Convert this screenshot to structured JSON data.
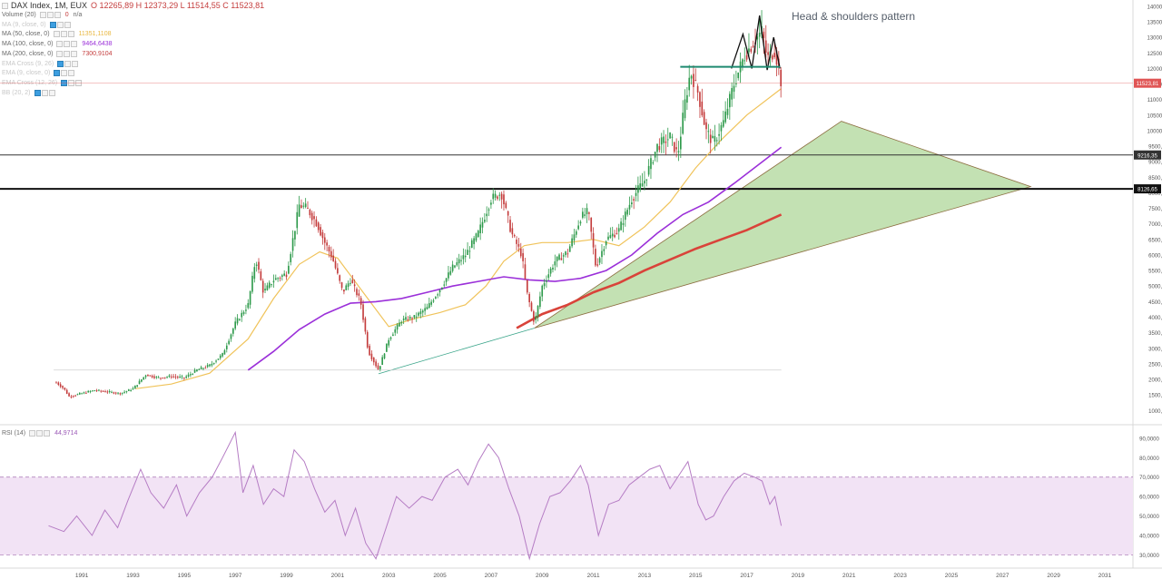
{
  "header": {
    "symbol": "DAX Index, 1M, EUX",
    "open": "O 12265,89",
    "high": "H 12373,29",
    "low": "L 11514,55",
    "close": "C 11523,81"
  },
  "indicators": [
    {
      "label": "Volume (20)",
      "value": "0",
      "extra": "n/a",
      "color": "#c43c3c",
      "faded": false
    },
    {
      "label": "MA (9, close, 0)",
      "value": "",
      "color": "#c8c8c8",
      "faded": true
    },
    {
      "label": "MA (50, close, 0)",
      "value": "11351,1108",
      "color": "#e9b740",
      "faded": false
    },
    {
      "label": "MA (100, close, 0)",
      "value": "9464,6438",
      "color": "#9b30d9",
      "faded": false
    },
    {
      "label": "MA (200, close, 0)",
      "value": "7300,9104",
      "color": "#c43c3c",
      "faded": false
    },
    {
      "label": "EMA Cross (9, 26)",
      "value": "",
      "color": "#c8c8c8",
      "faded": true
    },
    {
      "label": "EMA (9, close, 0)",
      "value": "",
      "color": "#c8c8c8",
      "faded": true
    },
    {
      "label": "EMA Cross (12, 26)",
      "value": "",
      "color": "#c8c8c8",
      "faded": true
    },
    {
      "label": "BB (20, 2)",
      "value": "",
      "color": "#c8c8c8",
      "faded": true
    }
  ],
  "rsi": {
    "label": "RSI (14)",
    "value": "44,9714",
    "color": "#9b59b6"
  },
  "annotation": "Head & shoulders pattern",
  "colors": {
    "up": "#2e9a4b",
    "down": "#c43c3c",
    "ma50": "#f0c35a",
    "ma100": "#9b30d9",
    "ma200": "#d9433a",
    "triangle_fill": "#b8dca6",
    "rsi": "#b57cc4",
    "rsi_band": "#f2e3f5"
  },
  "chart_data": {
    "type": "line",
    "title": "DAX Index, 1M, EUX",
    "price_axis": {
      "scale": "linear",
      "ylim": [
        600,
        14200
      ],
      "ticks": [
        "1000,00",
        "1500,00",
        "2000,00",
        "2500,00",
        "3000,00",
        "3500,00",
        "4000,00",
        "4500,00",
        "5000,00",
        "5500,00",
        "6000,00",
        "6500,00",
        "7000,00",
        "7500,00",
        "8000,00",
        "8500,00",
        "9000,00",
        "9500,00",
        "10000,00",
        "10500,00",
        "11000,00",
        "11500,00",
        "12000,00",
        "12500,00",
        "13000,00",
        "13500,00",
        "14000,00"
      ],
      "badges": [
        {
          "label": "11523,81",
          "value": 11523.81,
          "color": "#e05555"
        },
        {
          "label": "9216,35",
          "value": 9216.35,
          "color": "#333333"
        },
        {
          "label": "8126,65",
          "value": 8126.65,
          "color": "#111111"
        }
      ]
    },
    "x_axis": {
      "xlim": [
        1988.3,
        2032.6
      ],
      "ticks": [
        "1991",
        "1993",
        "1995",
        "1997",
        "1999",
        "2001",
        "2003",
        "2005",
        "2007",
        "2009",
        "2011",
        "2013",
        "2015",
        "2017",
        "2019",
        "2021",
        "2023",
        "2025",
        "2027",
        "2029",
        "2031"
      ]
    },
    "rsi_axis": {
      "ylim": [
        26,
        96
      ],
      "ticks": [
        "30,0000",
        "40,0000",
        "50,0000",
        "60,0000",
        "70,0000",
        "80,0000",
        "90,0000"
      ],
      "bands": [
        30,
        70
      ]
    },
    "price_path": [
      [
        1990.5,
        1900
      ],
      [
        1990.8,
        1700
      ],
      [
        1991.0,
        1450
      ],
      [
        1991.5,
        1550
      ],
      [
        1992.0,
        1650
      ],
      [
        1992.5,
        1600
      ],
      [
        1993.0,
        1550
      ],
      [
        1993.5,
        1700
      ],
      [
        1994.0,
        2150
      ],
      [
        1994.5,
        2050
      ],
      [
        1995.0,
        2100
      ],
      [
        1995.5,
        2050
      ],
      [
        1996.0,
        2300
      ],
      [
        1996.5,
        2450
      ],
      [
        1997.0,
        2800
      ],
      [
        1997.5,
        3800
      ],
      [
        1998.0,
        4400
      ],
      [
        1998.3,
        5900
      ],
      [
        1998.6,
        4800
      ],
      [
        1999.0,
        5200
      ],
      [
        1999.5,
        5400
      ],
      [
        2000.0,
        7600
      ],
      [
        2000.3,
        7500
      ],
      [
        2000.7,
        7000
      ],
      [
        2001.0,
        6400
      ],
      [
        2001.3,
        5900
      ],
      [
        2001.7,
        4800
      ],
      [
        2002.0,
        5200
      ],
      [
        2002.4,
        4500
      ],
      [
        2002.7,
        2900
      ],
      [
        2003.1,
        2300
      ],
      [
        2003.5,
        3300
      ],
      [
        2004.0,
        3900
      ],
      [
        2004.5,
        4000
      ],
      [
        2005.0,
        4300
      ],
      [
        2005.5,
        4900
      ],
      [
        2006.0,
        5600
      ],
      [
        2006.5,
        6000
      ],
      [
        2007.0,
        6700
      ],
      [
        2007.5,
        7800
      ],
      [
        2007.9,
        8000
      ],
      [
        2008.3,
        6700
      ],
      [
        2008.7,
        6000
      ],
      [
        2008.9,
        4800
      ],
      [
        2009.2,
        3800
      ],
      [
        2009.5,
        5000
      ],
      [
        2010.0,
        5800
      ],
      [
        2010.5,
        6100
      ],
      [
        2011.0,
        7200
      ],
      [
        2011.3,
        7400
      ],
      [
        2011.6,
        5600
      ],
      [
        2012.0,
        6500
      ],
      [
        2012.5,
        6800
      ],
      [
        2013.0,
        7800
      ],
      [
        2013.5,
        8400
      ],
      [
        2014.0,
        9500
      ],
      [
        2014.5,
        9800
      ],
      [
        2014.8,
        9200
      ],
      [
        2015.1,
        11000
      ],
      [
        2015.3,
        11900
      ],
      [
        2015.6,
        11200
      ],
      [
        2015.9,
        10000
      ],
      [
        2016.2,
        9600
      ],
      [
        2016.6,
        10300
      ],
      [
        2017.0,
        11500
      ],
      [
        2017.4,
        12400
      ],
      [
        2017.8,
        12900
      ],
      [
        2018.1,
        13200
      ],
      [
        2018.3,
        12300
      ],
      [
        2018.6,
        12600
      ],
      [
        2018.85,
        11524
      ]
    ],
    "series": [
      {
        "name": "MA (50, close, 0)",
        "values": [
          [
            1993.6,
            1700
          ],
          [
            1995.0,
            1850
          ],
          [
            1996.5,
            2200
          ],
          [
            1998.0,
            3300
          ],
          [
            1999.0,
            4600
          ],
          [
            2000.0,
            5700
          ],
          [
            2000.8,
            6100
          ],
          [
            2001.5,
            5900
          ],
          [
            2002.5,
            4800
          ],
          [
            2003.5,
            3700
          ],
          [
            2004.5,
            3950
          ],
          [
            2005.5,
            4150
          ],
          [
            2006.5,
            4400
          ],
          [
            2007.3,
            5000
          ],
          [
            2008.0,
            5800
          ],
          [
            2008.8,
            6300
          ],
          [
            2009.5,
            6400
          ],
          [
            2010.5,
            6400
          ],
          [
            2011.5,
            6500
          ],
          [
            2012.5,
            6300
          ],
          [
            2013.5,
            6900
          ],
          [
            2014.5,
            7700
          ],
          [
            2015.5,
            8800
          ],
          [
            2016.5,
            9700
          ],
          [
            2017.5,
            10500
          ],
          [
            2018.85,
            11351
          ]
        ]
      },
      {
        "name": "MA (100, close, 0)",
        "values": [
          [
            1998.0,
            2300
          ],
          [
            1999.0,
            2900
          ],
          [
            2000.0,
            3600
          ],
          [
            2001.0,
            4100
          ],
          [
            2002.0,
            4450
          ],
          [
            2003.0,
            4500
          ],
          [
            2004.0,
            4600
          ],
          [
            2005.0,
            4800
          ],
          [
            2006.0,
            5000
          ],
          [
            2007.0,
            5150
          ],
          [
            2008.0,
            5300
          ],
          [
            2009.0,
            5200
          ],
          [
            2010.0,
            5150
          ],
          [
            2011.0,
            5250
          ],
          [
            2012.0,
            5500
          ],
          [
            2013.0,
            6000
          ],
          [
            2014.0,
            6700
          ],
          [
            2015.0,
            7300
          ],
          [
            2016.0,
            7700
          ],
          [
            2017.0,
            8300
          ],
          [
            2018.85,
            9465
          ]
        ]
      },
      {
        "name": "MA (200, close, 0)",
        "values": [
          [
            2008.5,
            3650
          ],
          [
            2009.5,
            4100
          ],
          [
            2010.5,
            4400
          ],
          [
            2011.5,
            4800
          ],
          [
            2012.5,
            5100
          ],
          [
            2013.5,
            5500
          ],
          [
            2014.5,
            5850
          ],
          [
            2015.5,
            6200
          ],
          [
            2016.5,
            6500
          ],
          [
            2017.5,
            6800
          ],
          [
            2018.85,
            7301
          ]
        ]
      },
      {
        "name": "RSI (14)",
        "values": [
          [
            1990.2,
            45
          ],
          [
            1990.8,
            42
          ],
          [
            1991.3,
            50
          ],
          [
            1991.9,
            40
          ],
          [
            1992.4,
            53
          ],
          [
            1992.9,
            44
          ],
          [
            1993.3,
            58
          ],
          [
            1993.8,
            74
          ],
          [
            1994.2,
            62
          ],
          [
            1994.7,
            54
          ],
          [
            1995.2,
            66
          ],
          [
            1995.6,
            50
          ],
          [
            1996.1,
            62
          ],
          [
            1996.6,
            70
          ],
          [
            1997.0,
            80
          ],
          [
            1997.5,
            93
          ],
          [
            1997.8,
            62
          ],
          [
            1998.2,
            76
          ],
          [
            1998.6,
            56
          ],
          [
            1999.0,
            64
          ],
          [
            1999.4,
            60
          ],
          [
            1999.8,
            84
          ],
          [
            2000.2,
            78
          ],
          [
            2000.6,
            64
          ],
          [
            2001.0,
            52
          ],
          [
            2001.4,
            58
          ],
          [
            2001.8,
            40
          ],
          [
            2002.2,
            54
          ],
          [
            2002.6,
            36
          ],
          [
            2003.0,
            28
          ],
          [
            2003.4,
            44
          ],
          [
            2003.8,
            60
          ],
          [
            2004.3,
            54
          ],
          [
            2004.8,
            60
          ],
          [
            2005.2,
            58
          ],
          [
            2005.7,
            70
          ],
          [
            2006.2,
            74
          ],
          [
            2006.6,
            66
          ],
          [
            2007.0,
            78
          ],
          [
            2007.4,
            87
          ],
          [
            2007.8,
            80
          ],
          [
            2008.2,
            64
          ],
          [
            2008.6,
            50
          ],
          [
            2009.0,
            28
          ],
          [
            2009.4,
            46
          ],
          [
            2009.8,
            60
          ],
          [
            2010.2,
            62
          ],
          [
            2010.6,
            68
          ],
          [
            2011.0,
            76
          ],
          [
            2011.3,
            66
          ],
          [
            2011.7,
            40
          ],
          [
            2012.1,
            56
          ],
          [
            2012.5,
            58
          ],
          [
            2012.9,
            66
          ],
          [
            2013.3,
            70
          ],
          [
            2013.7,
            74
          ],
          [
            2014.1,
            76
          ],
          [
            2014.5,
            64
          ],
          [
            2014.9,
            72
          ],
          [
            2015.2,
            78
          ],
          [
            2015.6,
            56
          ],
          [
            2015.9,
            48
          ],
          [
            2016.2,
            50
          ],
          [
            2016.6,
            60
          ],
          [
            2017.0,
            68
          ],
          [
            2017.4,
            72
          ],
          [
            2017.8,
            70
          ],
          [
            2018.1,
            68
          ],
          [
            2018.4,
            56
          ],
          [
            2018.6,
            60
          ],
          [
            2018.85,
            45
          ]
        ]
      }
    ]
  }
}
